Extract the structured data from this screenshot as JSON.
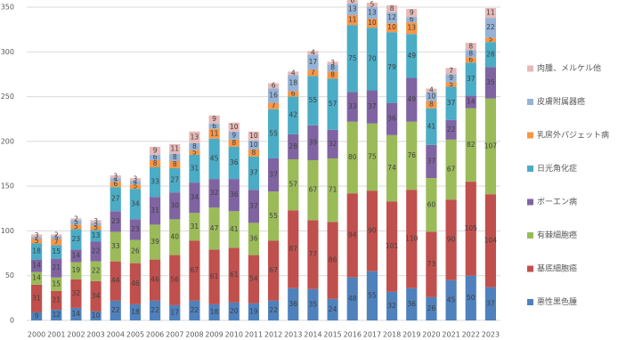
{
  "chart_data": {
    "type": "bar",
    "stacked": true,
    "categories": [
      "2000",
      "2001",
      "2002",
      "2003",
      "2004",
      "2005",
      "2006",
      "2007",
      "2008",
      "2009",
      "2010",
      "2011",
      "2012",
      "2013",
      "2014",
      "2015",
      "2016",
      "2017",
      "2018",
      "2019",
      "2020",
      "2021",
      "2022",
      "2023"
    ],
    "series": [
      {
        "name": "悪性黒色腫",
        "color": "#4f81bd",
        "values": [
          9,
          12,
          14,
          10,
          22,
          18,
          22,
          17,
          22,
          18,
          20,
          19,
          22,
          36,
          35,
          24,
          48,
          55,
          32,
          36,
          26,
          45,
          50,
          37
        ]
      },
      {
        "name": "基底細胞癌",
        "color": "#c0504d",
        "values": [
          31,
          21,
          32,
          34,
          44,
          46,
          46,
          56,
          67,
          61,
          61,
          54,
          67,
          87,
          77,
          86,
          94,
          90,
          101,
          110,
          73,
          90,
          105,
          104
        ]
      },
      {
        "name": "有棘細胞癌",
        "color": "#9bbb59",
        "values": [
          14,
          15,
          19,
          22,
          33,
          26,
          39,
          40,
          31,
          47,
          41,
          36,
          55,
          57,
          67,
          71,
          80,
          75,
          74,
          76,
          60,
          67,
          82,
          107
        ]
      },
      {
        "name": "ボーエン病",
        "color": "#8064a2",
        "values": [
          14,
          21,
          14,
          22,
          23,
          23,
          31,
          30,
          34,
          32,
          36,
          37,
          37,
          28,
          39,
          32,
          33,
          37,
          36,
          49,
          37,
          22,
          14,
          35
        ]
      },
      {
        "name": "日光角化症",
        "color": "#4bacc6",
        "values": [
          18,
          15,
          23,
          13,
          27,
          34,
          33,
          27,
          31,
          45,
          36,
          37,
          55,
          42,
          55,
          57,
          75,
          70,
          79,
          49,
          41,
          37,
          37,
          28
        ]
      },
      {
        "name": "乳房外パジェット病",
        "color": "#f79646",
        "values": [
          5,
          7,
          5,
          5,
          6,
          5,
          8,
          8,
          5,
          11,
          8,
          8,
          7,
          6,
          7,
          8,
          11,
          10,
          10,
          13,
          8,
          5,
          6,
          5
        ]
      },
      {
        "name": "皮膚附属器癌",
        "color": "#95b3d7",
        "values": [
          2,
          3,
          5,
          3,
          4,
          4,
          6,
          8,
          8,
          6,
          9,
          10,
          16,
          18,
          17,
          8,
          13,
          13,
          12,
          6,
          10,
          9,
          8,
          22
        ]
      },
      {
        "name": "肉腫、メルケル他",
        "color": "#e6b9b8",
        "values": [
          3,
          2,
          2,
          3,
          3,
          3,
          9,
          11,
          13,
          9,
          10,
          10,
          6,
          4,
          4,
          3,
          6,
          5,
          8,
          9,
          4,
          7,
          8,
          11
        ]
      }
    ],
    "ylim": [
      0,
      350
    ],
    "yticks": [
      0,
      50,
      100,
      150,
      200,
      250,
      300,
      350
    ],
    "grid": true
  }
}
